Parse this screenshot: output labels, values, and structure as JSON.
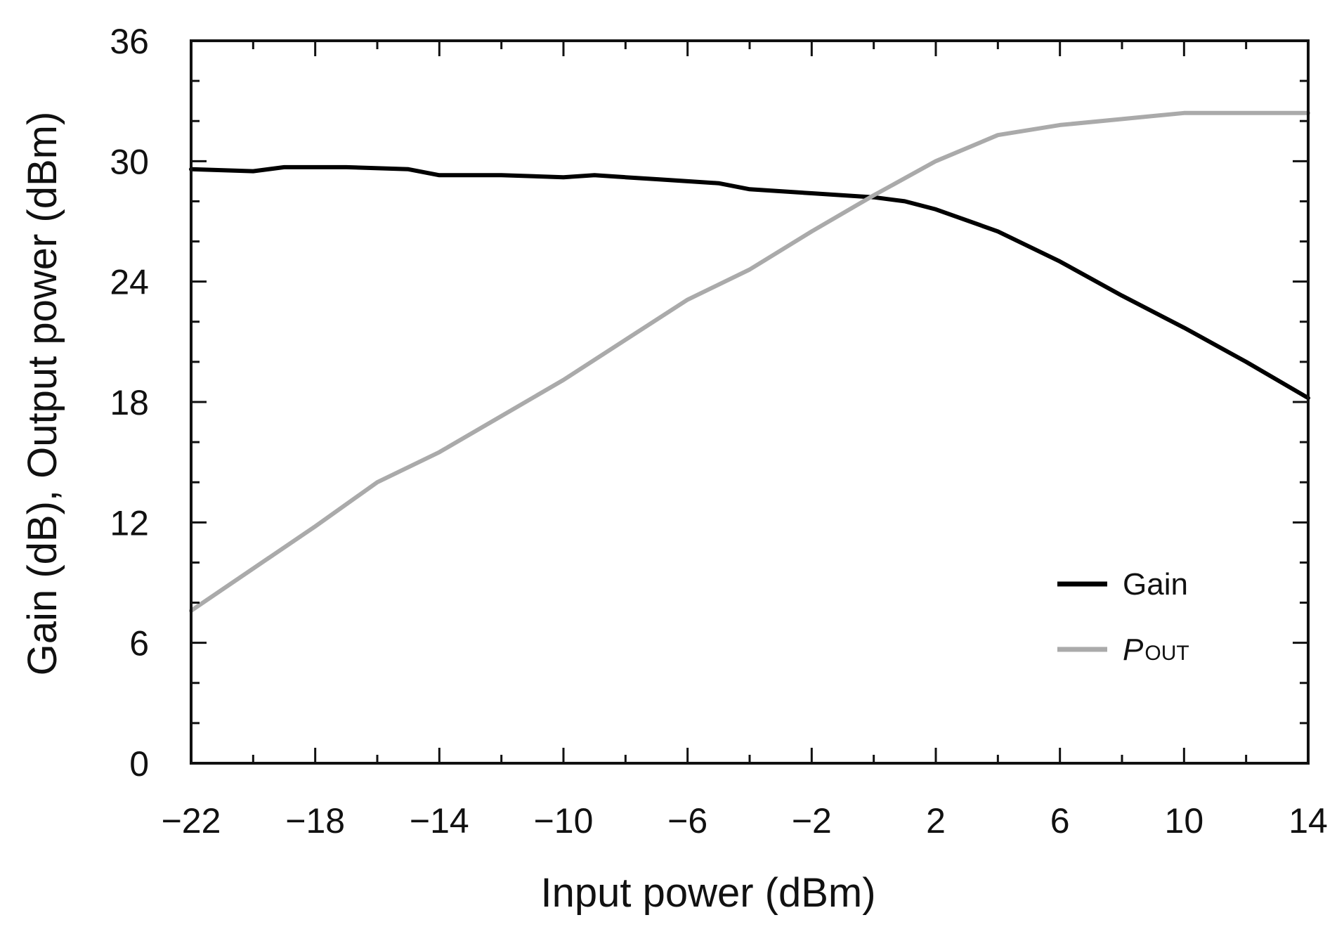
{
  "chart_data": {
    "type": "line",
    "title": "",
    "xlabel": "Input power (dBm)",
    "ylabel": "Gain (dB), Output power (dBm)",
    "xlim": [
      -22,
      14
    ],
    "ylim": [
      0,
      36
    ],
    "x_ticks": [
      -22,
      -18,
      -14,
      -10,
      -6,
      -2,
      2,
      6,
      10,
      14
    ],
    "x_tick_labels": [
      "−22",
      "−18",
      "−14",
      "−10",
      "−6",
      "−2",
      "2",
      "6",
      "10",
      "14"
    ],
    "y_ticks": [
      0,
      6,
      12,
      18,
      24,
      30,
      36
    ],
    "y_tick_labels": [
      "0",
      "6",
      "12",
      "18",
      "24",
      "30",
      "36"
    ],
    "grid": false,
    "legend_position": "bottom-right",
    "series": [
      {
        "name": "Gain",
        "color": "#000000",
        "x": [
          -22,
          -20,
          -19,
          -17,
          -15,
          -14,
          -12,
          -10,
          -9,
          -8,
          -7,
          -5,
          -4,
          -2,
          0,
          1,
          2,
          4,
          6,
          8,
          10,
          12,
          14
        ],
        "values": [
          29.6,
          29.5,
          29.7,
          29.7,
          29.6,
          29.3,
          29.3,
          29.2,
          29.3,
          29.2,
          29.1,
          28.9,
          28.6,
          28.4,
          28.2,
          28.0,
          27.6,
          26.5,
          25.0,
          23.3,
          21.7,
          20.0,
          18.2
        ]
      },
      {
        "name_main": "P",
        "name_sub": "OUT",
        "color": "#aaaaaa",
        "x": [
          -22,
          -20,
          -18,
          -16,
          -14,
          -12,
          -10,
          -8,
          -6,
          -4,
          -2,
          0,
          2,
          4,
          6,
          8,
          10,
          12,
          14
        ],
        "values": [
          7.6,
          9.7,
          11.8,
          14.0,
          15.5,
          17.3,
          19.1,
          21.1,
          23.1,
          24.6,
          26.5,
          28.3,
          30.0,
          31.3,
          31.8,
          32.1,
          32.4,
          32.4,
          32.4
        ]
      }
    ]
  }
}
